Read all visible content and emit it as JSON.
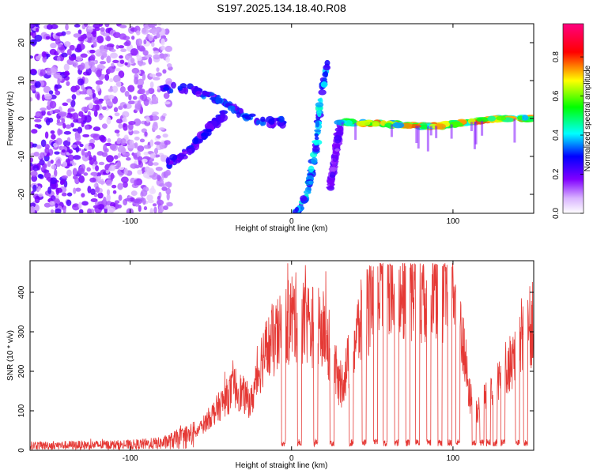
{
  "chart_data": [
    {
      "type": "heatmap",
      "title": "S197.2025.134.18.40.R08",
      "xlabel": "Height of straight line (km)",
      "ylabel": "Frequency (Hz)",
      "xlim": [
        -162,
        150
      ],
      "ylim": [
        -25,
        25
      ],
      "x_ticks": [
        -100,
        0,
        100
      ],
      "y_ticks": [
        -20,
        -10,
        0,
        10,
        20
      ],
      "colorbar": {
        "label": "Normalized spectral amplitude",
        "range": [
          0,
          0.97
        ],
        "ticks": [
          0.0,
          0.2,
          0.4,
          0.6,
          0.8
        ],
        "tick_labels": [
          "0.0",
          "0.2",
          "0.4",
          "0.6",
          "0.8"
        ],
        "colormap": [
          "#ffffff",
          "#8000ff",
          "#0000ff",
          "#00ffff",
          "#00ff00",
          "#ffff00",
          "#ff0000",
          "#ff0080"
        ]
      },
      "features": [
        {
          "name": "noise field",
          "x_range": [
            -162,
            -75
          ],
          "y_range": [
            -25,
            25
          ],
          "amplitude": 0.15
        },
        {
          "name": "upper branch",
          "points": [
            [
              -80,
              8
            ],
            [
              -65,
              8
            ],
            [
              -50,
              6
            ],
            [
              -40,
              4
            ],
            [
              -30,
              1
            ],
            [
              -15,
              -1
            ],
            [
              -5,
              -1
            ]
          ],
          "amplitude": 0.35
        },
        {
          "name": "lower branch",
          "points": [
            [
              -78,
              -12
            ],
            [
              -68,
              -10
            ],
            [
              -58,
              -6
            ],
            [
              -50,
              -2
            ],
            [
              -42,
              1
            ]
          ],
          "amplitude": 0.3
        },
        {
          "name": "steep streak",
          "points": [
            [
              3,
              -25
            ],
            [
              10,
              -20
            ],
            [
              15,
              -8
            ],
            [
              18,
              5
            ],
            [
              22,
              15
            ]
          ],
          "amplitude": 0.45
        },
        {
          "name": "steep streak 2",
          "points": [
            [
              24,
              -18
            ],
            [
              27,
              -10
            ],
            [
              30,
              -2
            ]
          ],
          "amplitude": 0.2
        },
        {
          "name": "steady line",
          "points": [
            [
              30,
              -1
            ],
            [
              60,
              -1.5
            ],
            [
              80,
              -2
            ],
            [
              90,
              -2
            ],
            [
              110,
              -1
            ],
            [
              130,
              0
            ],
            [
              150,
              0
            ]
          ],
          "amplitude": 0.8
        }
      ]
    },
    {
      "type": "line",
      "title": "",
      "xlabel": "Height of straight line (km)",
      "ylabel": "SNR (10 * v/v)",
      "xlim": [
        -162,
        150
      ],
      "ylim": [
        0,
        480
      ],
      "x_ticks": [
        -100,
        0,
        100
      ],
      "y_ticks": [
        0,
        100,
        200,
        300,
        400
      ],
      "color": "#e53935",
      "envelope": [
        [
          -162,
          12
        ],
        [
          -100,
          14
        ],
        [
          -80,
          18
        ],
        [
          -60,
          40
        ],
        [
          -45,
          110
        ],
        [
          -35,
          160
        ],
        [
          -25,
          120
        ],
        [
          -18,
          240
        ],
        [
          -10,
          280
        ],
        [
          -5,
          300
        ],
        [
          0,
          340
        ],
        [
          10,
          320
        ],
        [
          20,
          300
        ],
        [
          25,
          250
        ],
        [
          30,
          150
        ],
        [
          40,
          290
        ],
        [
          50,
          390
        ],
        [
          60,
          410
        ],
        [
          70,
          420
        ],
        [
          80,
          410
        ],
        [
          90,
          420
        ],
        [
          100,
          400
        ],
        [
          105,
          320
        ],
        [
          110,
          140
        ],
        [
          115,
          100
        ],
        [
          120,
          140
        ],
        [
          130,
          200
        ],
        [
          140,
          240
        ],
        [
          145,
          300
        ],
        [
          150,
          320
        ]
      ],
      "dropout_centers": [
        -5,
        5,
        15,
        25,
        37,
        45,
        52,
        58,
        65,
        72,
        78,
        85,
        92,
        98,
        103,
        113,
        118,
        122,
        126,
        131,
        140,
        145
      ]
    }
  ]
}
